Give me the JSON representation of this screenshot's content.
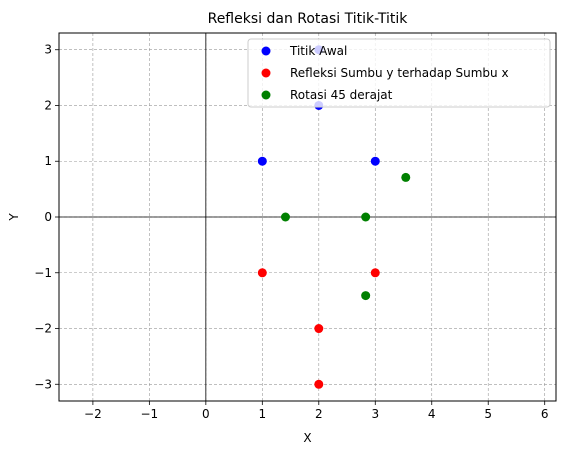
{
  "chart_data": {
    "type": "scatter",
    "title": "Refleksi dan Rotasi Titik-Titik",
    "xlabel": "X",
    "ylabel": "Y",
    "xlim": [
      -2.6,
      6.2
    ],
    "ylim": [
      -3.3,
      3.3
    ],
    "xticks": [
      -2,
      -1,
      0,
      1,
      2,
      3,
      4,
      5,
      6
    ],
    "yticks": [
      -3,
      -2,
      -1,
      0,
      1,
      2,
      3
    ],
    "xtick_labels": [
      "−2",
      "−1",
      "0",
      "1",
      "2",
      "3",
      "4",
      "5",
      "6"
    ],
    "ytick_labels": [
      "−3",
      "−2",
      "−1",
      "0",
      "1",
      "2",
      "3"
    ],
    "grid": true,
    "legend_position": "top-right",
    "series": [
      {
        "name": "Titik Awal",
        "color": "#0000ff",
        "points": [
          [
            2,
            3
          ],
          [
            2,
            2
          ],
          [
            1,
            1
          ],
          [
            3,
            1
          ]
        ]
      },
      {
        "name": "Refleksi Sumbu y terhadap Sumbu x",
        "color": "#ff0000",
        "points": [
          [
            2,
            -3
          ],
          [
            2,
            -2
          ],
          [
            1,
            -1
          ],
          [
            3,
            -1
          ]
        ]
      },
      {
        "name": "Rotasi 45 derajat",
        "color": "#008000",
        "points": [
          [
            3.54,
            0.71
          ],
          [
            2.83,
            0.0
          ],
          [
            1.41,
            0.0
          ],
          [
            2.83,
            -1.41
          ]
        ]
      }
    ]
  }
}
